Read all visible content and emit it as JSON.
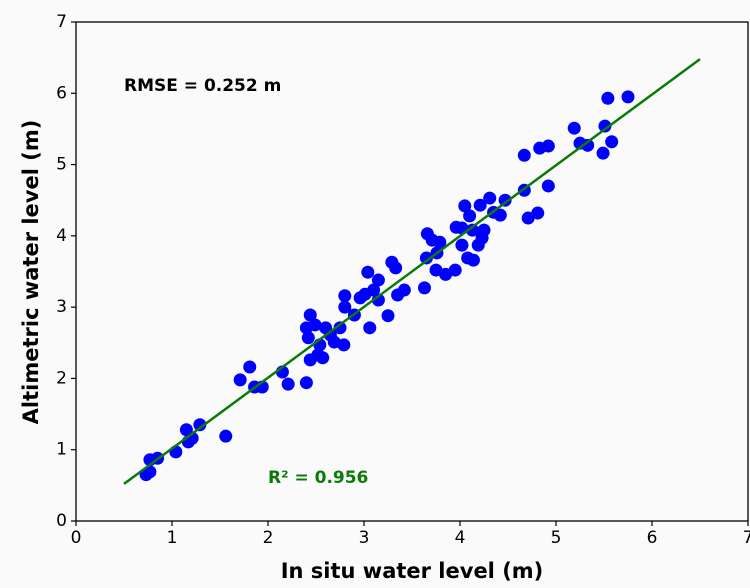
{
  "chart_data": {
    "type": "scatter",
    "x_label": "In situ water level (m)",
    "y_label": "Altimetric water level (m)",
    "annotations": [
      {
        "text": "RMSE = 0.252 m",
        "color": "#000000",
        "x": 0.5,
        "y": 6.1
      },
      {
        "text": "R² = 0.956",
        "color": "#0a7a0a",
        "x": 2.0,
        "y": 0.6
      }
    ],
    "xlim": [
      0,
      7
    ],
    "ylim": [
      0,
      7
    ],
    "xticks": [
      0,
      1,
      2,
      3,
      4,
      5,
      6,
      7
    ],
    "yticks": [
      0,
      1,
      2,
      3,
      4,
      5,
      6,
      7
    ],
    "color": "#0000ff",
    "x": [
      0.73,
      0.77,
      0.77,
      0.85,
      1.04,
      1.15,
      1.17,
      1.21,
      1.29,
      1.56,
      1.71,
      1.81,
      1.86,
      1.94,
      2.15,
      2.21,
      2.4,
      2.4,
      2.42,
      2.44,
      2.44,
      2.49,
      2.52,
      2.54,
      2.57,
      2.6,
      2.65,
      2.69,
      2.75,
      2.79,
      2.8,
      2.8,
      2.9,
      2.96,
      3.01,
      3.04,
      3.06,
      3.1,
      3.15,
      3.15,
      3.25,
      3.29,
      3.33,
      3.35,
      3.42,
      3.63,
      3.65,
      3.66,
      3.71,
      3.75,
      3.76,
      3.79,
      3.85,
      3.95,
      3.96,
      4.02,
      4.02,
      4.05,
      4.08,
      4.1,
      4.13,
      4.14,
      4.19,
      4.21,
      4.23,
      4.25,
      4.31,
      4.35,
      4.42,
      4.47,
      4.67,
      4.67,
      4.71,
      4.81,
      4.83,
      4.92,
      4.92,
      5.19,
      5.25,
      5.33,
      5.49,
      5.51,
      5.54,
      5.58,
      5.75
    ],
    "values": [
      0.65,
      0.69,
      0.86,
      0.88,
      0.97,
      1.28,
      1.11,
      1.16,
      1.35,
      1.19,
      1.98,
      2.16,
      1.88,
      1.88,
      2.09,
      1.92,
      1.94,
      2.71,
      2.57,
      2.89,
      2.26,
      2.75,
      2.33,
      2.47,
      2.29,
      2.71,
      2.61,
      2.51,
      2.71,
      2.47,
      3.16,
      3.0,
      2.89,
      3.13,
      3.18,
      3.49,
      2.71,
      3.24,
      3.38,
      3.1,
      2.88,
      3.63,
      3.55,
      3.17,
      3.24,
      3.27,
      3.69,
      4.03,
      3.94,
      3.52,
      3.76,
      3.91,
      3.46,
      3.52,
      4.12,
      4.11,
      3.87,
      4.42,
      3.69,
      4.28,
      4.08,
      3.66,
      3.87,
      4.43,
      3.97,
      4.08,
      4.53,
      4.33,
      4.29,
      4.5,
      5.13,
      4.64,
      4.25,
      4.32,
      5.23,
      5.26,
      4.7,
      5.51,
      5.3,
      5.27,
      5.16,
      5.54,
      5.93,
      5.32,
      5.95
    ],
    "fit_line": {
      "color": "#0a7a0a",
      "x": [
        0.5,
        6.5
      ],
      "y": [
        0.52,
        6.48
      ]
    }
  }
}
